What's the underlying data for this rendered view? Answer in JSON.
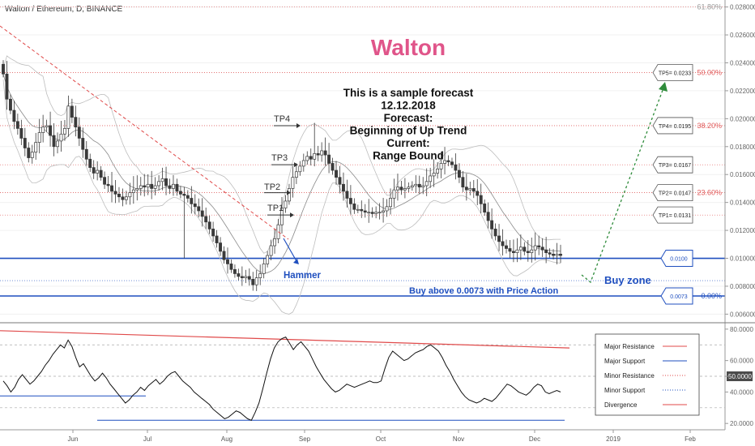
{
  "header": {
    "symbol": "Walton / Ethereum, D, BINANCE"
  },
  "colors": {
    "up": "#3a3a3a",
    "down": "#3a3a3a",
    "major_line": "#1f4fbf",
    "fib": "#e05a5a",
    "resistance_dashed": "#e04a4a",
    "bb": "#bdbdbd",
    "brand": "#e0558a",
    "green": "#2e8b3a"
  },
  "annotations": {
    "brand_title": "Walton",
    "forecast_lines": [
      "This is a sample forecast",
      "12.12.2018",
      "Forecast:",
      "Beginning of Up Trend",
      "Current:",
      "Range Bound"
    ],
    "hammer": "Hammer",
    "buy_zone": "Buy zone",
    "buy_text": "Buy above 0.0073 with Price Action",
    "tp_labels": [
      "TP1",
      "TP2",
      "TP3",
      "TP4"
    ],
    "tp_callouts": [
      "TP5= 0.0233",
      "TP4= 0.0195",
      "TP3= 0.0167",
      "TP2= 0.0147",
      "TP1= 0.0131"
    ],
    "level_boxes": [
      "0.0100",
      "0.0073"
    ]
  },
  "legend": {
    "items": [
      {
        "label": "Major Resistance",
        "color": "#e04a4a",
        "style": "solid"
      },
      {
        "label": "Major Support",
        "color": "#1f4fbf",
        "style": "solid"
      },
      {
        "label": "Minor Resistance",
        "color": "#e04a4a",
        "style": "dotted"
      },
      {
        "label": "Minor Support",
        "color": "#1f4fbf",
        "style": "dotted"
      },
      {
        "label": "Divergence",
        "color": "#e04a4a",
        "style": "solid"
      }
    ]
  },
  "chart_data": [
    {
      "type": "candlestick",
      "title": "Walton / Ethereum, D, BINANCE",
      "y_axis_ticks": [
        "0.028000",
        "0.026000",
        "0.024000",
        "0.022000",
        "0.020000",
        "0.018000",
        "0.016000",
        "0.014000",
        "0.012000",
        "0.010000",
        "0.008000",
        "0.006000"
      ],
      "ylim": [
        0.0055,
        0.0285
      ],
      "x_tick_labels": [
        "Jun",
        "Jul",
        "Aug",
        "Sep",
        "Oct",
        "Nov",
        "Dec",
        "2019",
        "Feb"
      ],
      "fib_levels": [
        {
          "label": "61.80%",
          "value": 0.028
        },
        {
          "label": "50.00%",
          "value": 0.0233
        },
        {
          "label": "38.20%",
          "value": 0.0195
        },
        {
          "label": "23.60%",
          "value": 0.0147
        },
        {
          "label": "0.00%",
          "value": 0.0073
        }
      ],
      "horizontal_levels": {
        "major_support": [
          0.01,
          0.0073
        ],
        "minor_resistance": [
          0.0233,
          0.0195,
          0.0167,
          0.0147,
          0.0131
        ],
        "minor_support": [
          0.0084
        ]
      },
      "close_series": [
        0.0232,
        0.0214,
        0.0206,
        0.0198,
        0.0193,
        0.0186,
        0.0179,
        0.0172,
        0.0176,
        0.0183,
        0.019,
        0.0194,
        0.0195,
        0.0188,
        0.018,
        0.0184,
        0.0189,
        0.0193,
        0.0209,
        0.0201,
        0.0194,
        0.0186,
        0.0178,
        0.0171,
        0.0165,
        0.0161,
        0.0163,
        0.0158,
        0.0153,
        0.0152,
        0.0148,
        0.0146,
        0.0144,
        0.0142,
        0.0144,
        0.0147,
        0.0149,
        0.015,
        0.0152,
        0.0151,
        0.0153,
        0.015,
        0.0152,
        0.0155,
        0.0157,
        0.0152,
        0.015,
        0.0153,
        0.0148,
        0.0146,
        0.0145,
        0.0143,
        0.0139,
        0.0137,
        0.0134,
        0.013,
        0.0126,
        0.0121,
        0.0116,
        0.0111,
        0.0105,
        0.0099,
        0.0096,
        0.0092,
        0.0089,
        0.0087,
        0.0086,
        0.0087,
        0.0085,
        0.0081,
        0.0086,
        0.0089,
        0.0096,
        0.0102,
        0.0109,
        0.0114,
        0.0124,
        0.0136,
        0.0141,
        0.015,
        0.0158,
        0.0162,
        0.0166,
        0.017,
        0.0173,
        0.0171,
        0.0175,
        0.0174,
        0.0177,
        0.0174,
        0.0168,
        0.0163,
        0.0158,
        0.0153,
        0.0148,
        0.0143,
        0.0139,
        0.0135,
        0.0135,
        0.0134,
        0.0133,
        0.0133,
        0.0132,
        0.0133,
        0.0133,
        0.0134,
        0.0137,
        0.0143,
        0.0149,
        0.0151,
        0.0149,
        0.015,
        0.0151,
        0.0152,
        0.0153,
        0.0151,
        0.0152,
        0.0155,
        0.0159,
        0.0161,
        0.0164,
        0.0168,
        0.017,
        0.0169,
        0.0167,
        0.0163,
        0.0158,
        0.0151,
        0.0149,
        0.015,
        0.0148,
        0.0145,
        0.0139,
        0.0133,
        0.0127,
        0.0121,
        0.0116,
        0.0112,
        0.0109,
        0.0107,
        0.0105,
        0.0104,
        0.0106,
        0.0108,
        0.0105,
        0.0104,
        0.0106,
        0.0109,
        0.0108,
        0.0106,
        0.0104,
        0.0103,
        0.0102,
        0.0103,
        0.0102
      ]
    },
    {
      "type": "line",
      "title": "",
      "y_axis_ticks": [
        "80.0000",
        "60.0000",
        "50.0000",
        "40.0000",
        "20.0000"
      ],
      "ylim": [
        17,
        82
      ],
      "highlighted_value": "50.0000",
      "major_support_levels": [
        37.5,
        22.0
      ],
      "divergence_line": {
        "from": 79,
        "to": 68
      },
      "series": [
        {
          "values": [
            47,
            44,
            40,
            43,
            48,
            51,
            48,
            45,
            47,
            50,
            53,
            57,
            60,
            64,
            67,
            70,
            68,
            73,
            69,
            62,
            56,
            58,
            54,
            50,
            47,
            49,
            52,
            49,
            45,
            42,
            39,
            36,
            33,
            35,
            38,
            40,
            43,
            41,
            44,
            46,
            48,
            45,
            47,
            50,
            52,
            53,
            50,
            47,
            45,
            43,
            40,
            38,
            36,
            34,
            32,
            29,
            27,
            25,
            23,
            24,
            26,
            28,
            27,
            25,
            23,
            22,
            27,
            33,
            42,
            52,
            61,
            68,
            72,
            74,
            75,
            71,
            67,
            70,
            72,
            69,
            66,
            61,
            56,
            52,
            48,
            45,
            42,
            40,
            41,
            43,
            45,
            44,
            43,
            44,
            45,
            46,
            47,
            46,
            46,
            47,
            55,
            62,
            66,
            64,
            62,
            60,
            61,
            63,
            65,
            66,
            67,
            69,
            70,
            68,
            66,
            62,
            57,
            53,
            48,
            44,
            40,
            37,
            35,
            34,
            33,
            34,
            36,
            35,
            34,
            36,
            39,
            42,
            45,
            44,
            42,
            40,
            39,
            38,
            40,
            43,
            45,
            44,
            40,
            39,
            40,
            41,
            40
          ]
        }
      ]
    }
  ]
}
